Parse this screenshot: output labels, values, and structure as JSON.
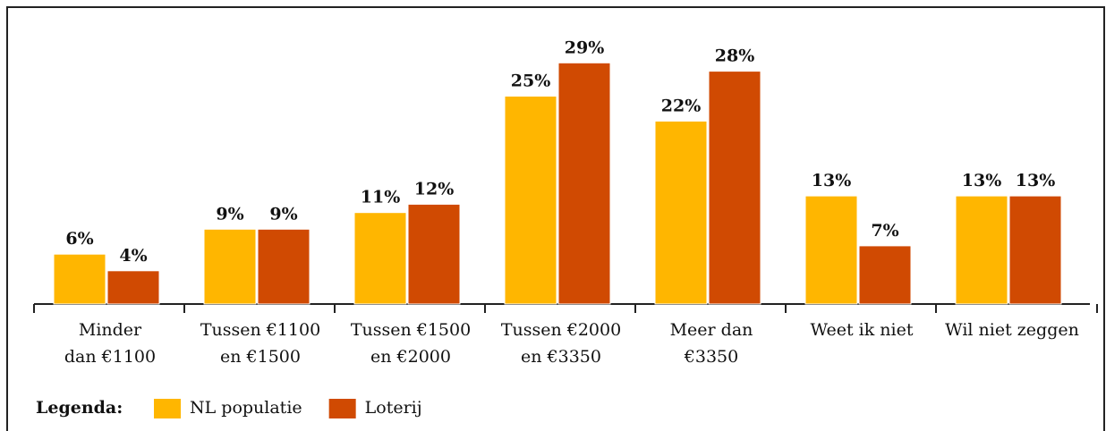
{
  "chart_data": {
    "type": "bar",
    "categories": [
      [
        "Minder",
        "dan €1100"
      ],
      [
        "Tussen €1100",
        "en €1500"
      ],
      [
        "Tussen €1500",
        "en €2000"
      ],
      [
        "Tussen €2000",
        "en €3350"
      ],
      [
        "Meer dan",
        "€3350"
      ],
      [
        "Weet ik niet"
      ],
      [
        "Wil niet zeggen"
      ]
    ],
    "series": [
      {
        "name": "NL populatie",
        "color": "#ffb600",
        "values": [
          6,
          9,
          11,
          25,
          22,
          13,
          13
        ],
        "value_labels": [
          "6%",
          "9%",
          "11%",
          "25%",
          "22%",
          "13%",
          "13%"
        ]
      },
      {
        "name": "Loterij",
        "color": "#d04a02",
        "values": [
          4,
          9,
          12,
          29,
          28,
          7,
          13
        ],
        "value_labels": [
          "4%",
          "9%",
          "12%",
          "29%",
          "28%",
          "7%",
          "13%"
        ]
      }
    ],
    "legend_title": "Legenda:",
    "legend": "bottom-left"
  }
}
